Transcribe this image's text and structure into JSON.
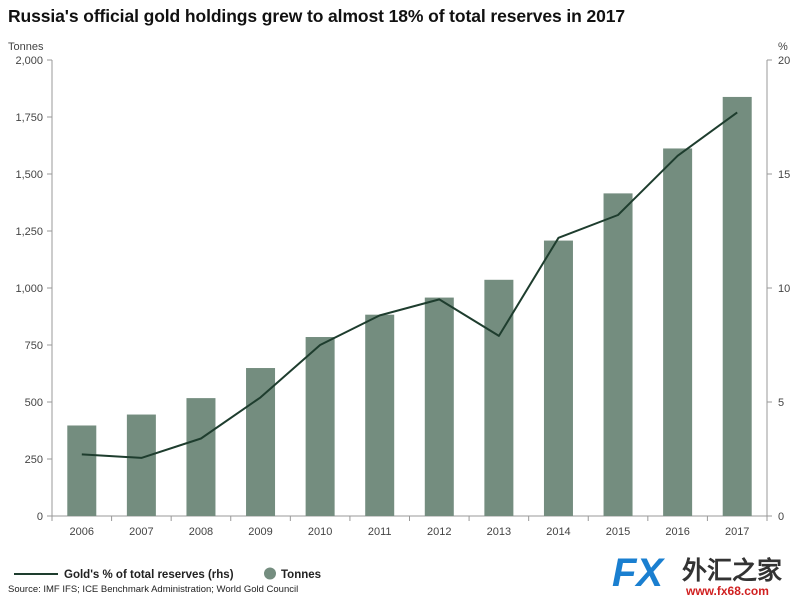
{
  "chart_data": {
    "type": "bar+line",
    "title": "Russia's official gold holdings grew to almost 18% of total reserves in 2017",
    "categories": [
      "2006",
      "2007",
      "2008",
      "2009",
      "2010",
      "2011",
      "2012",
      "2013",
      "2014",
      "2015",
      "2016",
      "2017"
    ],
    "bar_series": {
      "name": "Tonnes",
      "values": [
        397,
        445,
        517,
        649,
        785,
        883,
        958,
        1036,
        1208,
        1415,
        1612,
        1838
      ]
    },
    "line_series": {
      "name": "Gold's % of total reserves (rhs)",
      "values": [
        2.7,
        2.55,
        3.4,
        5.2,
        7.5,
        8.8,
        9.5,
        7.9,
        12.2,
        13.2,
        15.8,
        17.7
      ]
    },
    "left_axis": {
      "label": "Tonnes",
      "ylim": [
        0,
        2000
      ],
      "ticks": [
        0,
        250,
        500,
        750,
        1000,
        1250,
        1500,
        1750,
        2000
      ],
      "tick_labels": [
        "0",
        "250",
        "500",
        "750",
        "1,000",
        "1,250",
        "1,500",
        "1,750",
        "2,000"
      ]
    },
    "right_axis": {
      "label": "%",
      "ylim": [
        0,
        20
      ],
      "ticks": [
        0,
        5,
        10,
        15,
        20
      ],
      "tick_labels": [
        "0",
        "5",
        "10",
        "15",
        "20"
      ]
    },
    "legend_placement": "bottom-left",
    "colors": {
      "bar": "#748d7f",
      "line": "#1e3d2e",
      "axis": "#999999"
    }
  },
  "source": "Source: IMF IFS; ICE Benchmark Administration; World Gold Council",
  "logo": {
    "latin": "FX",
    "chinese": "外汇之家",
    "url": "www.fx68.com"
  }
}
